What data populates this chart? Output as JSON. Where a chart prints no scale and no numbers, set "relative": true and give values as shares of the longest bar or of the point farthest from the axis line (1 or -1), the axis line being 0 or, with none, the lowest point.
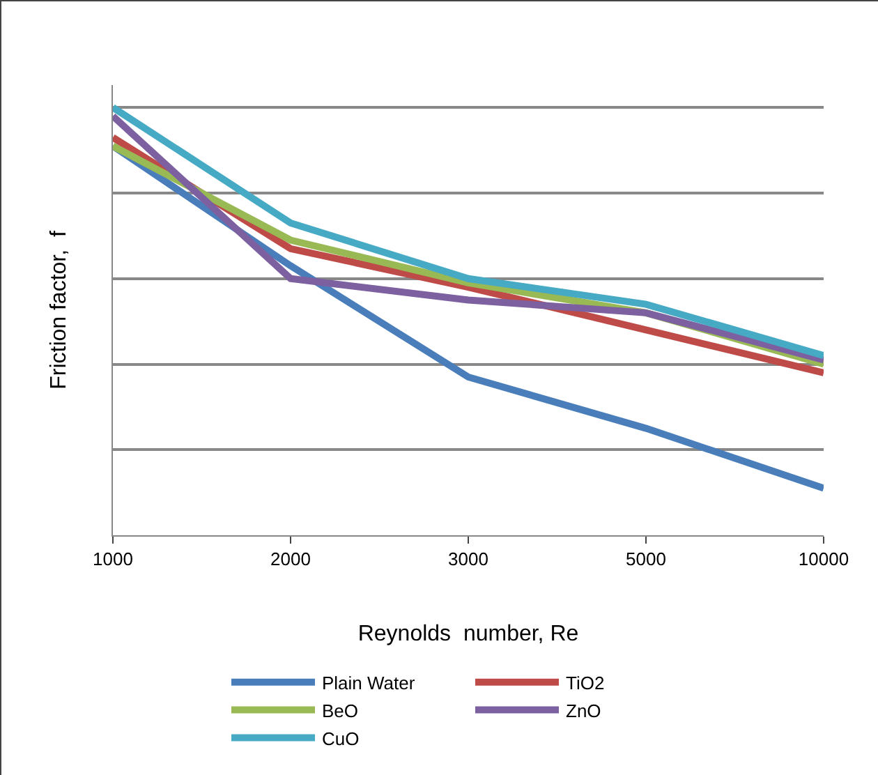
{
  "chart_data": {
    "type": "line",
    "relative": true,
    "xlabel": "Reynolds  number, Re",
    "ylabel": "Friction factor,  f",
    "categories": [
      "1000",
      "2000",
      "3000",
      "5000",
      "10000"
    ],
    "series": [
      {
        "name": "Plain Water",
        "color": "#4a7ebb",
        "values": [
          0.91,
          0.63,
          0.37,
          0.25,
          0.11
        ]
      },
      {
        "name": "TiO2",
        "color": "#be4b48",
        "values": [
          0.93,
          0.67,
          0.58,
          0.48,
          0.38
        ]
      },
      {
        "name": "BeO",
        "color": "#98b954",
        "values": [
          0.91,
          0.69,
          0.59,
          0.52,
          0.4
        ]
      },
      {
        "name": "ZnO",
        "color": "#7d60a0",
        "values": [
          0.98,
          0.6,
          0.55,
          0.52,
          0.41
        ]
      },
      {
        "name": "CuO",
        "color": "#46aac5",
        "values": [
          1,
          0.73,
          0.6,
          0.54,
          0.42
        ]
      }
    ],
    "grid": "y",
    "legend": "bottom",
    "marker": "none",
    "line_style": "solid"
  }
}
